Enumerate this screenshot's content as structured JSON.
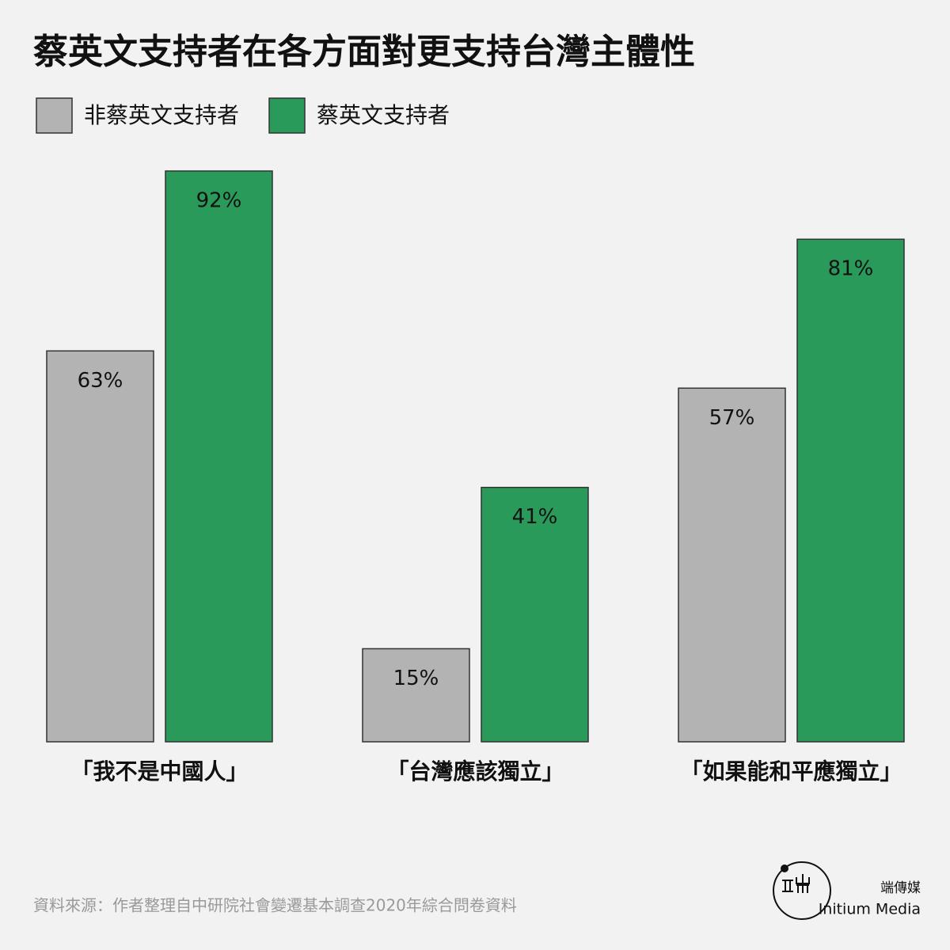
{
  "chart_data": {
    "type": "bar",
    "title": "蔡英文支持者在各方面對更支持台灣主體性",
    "categories": [
      "「我不是中國人」",
      "「台灣應該獨立」",
      "「如果能和平應獨立」"
    ],
    "series": [
      {
        "name": "非蔡英文支持者",
        "color": "#b3b3b3",
        "values": [
          63,
          15,
          57
        ],
        "value_labels": [
          "63%",
          "15%",
          "57%"
        ]
      },
      {
        "name": "蔡英文支持者",
        "color": "#2a9a5a",
        "values": [
          92,
          41,
          81
        ],
        "value_labels": [
          "92%",
          "41%",
          "81%"
        ]
      }
    ]
  },
  "footer": {
    "source": "資料來源：作者整理自中研院社會變遷基本調查2020年綜合問卷資料",
    "brand_zh": "端傳媒",
    "brand_en": "Initium Media"
  }
}
